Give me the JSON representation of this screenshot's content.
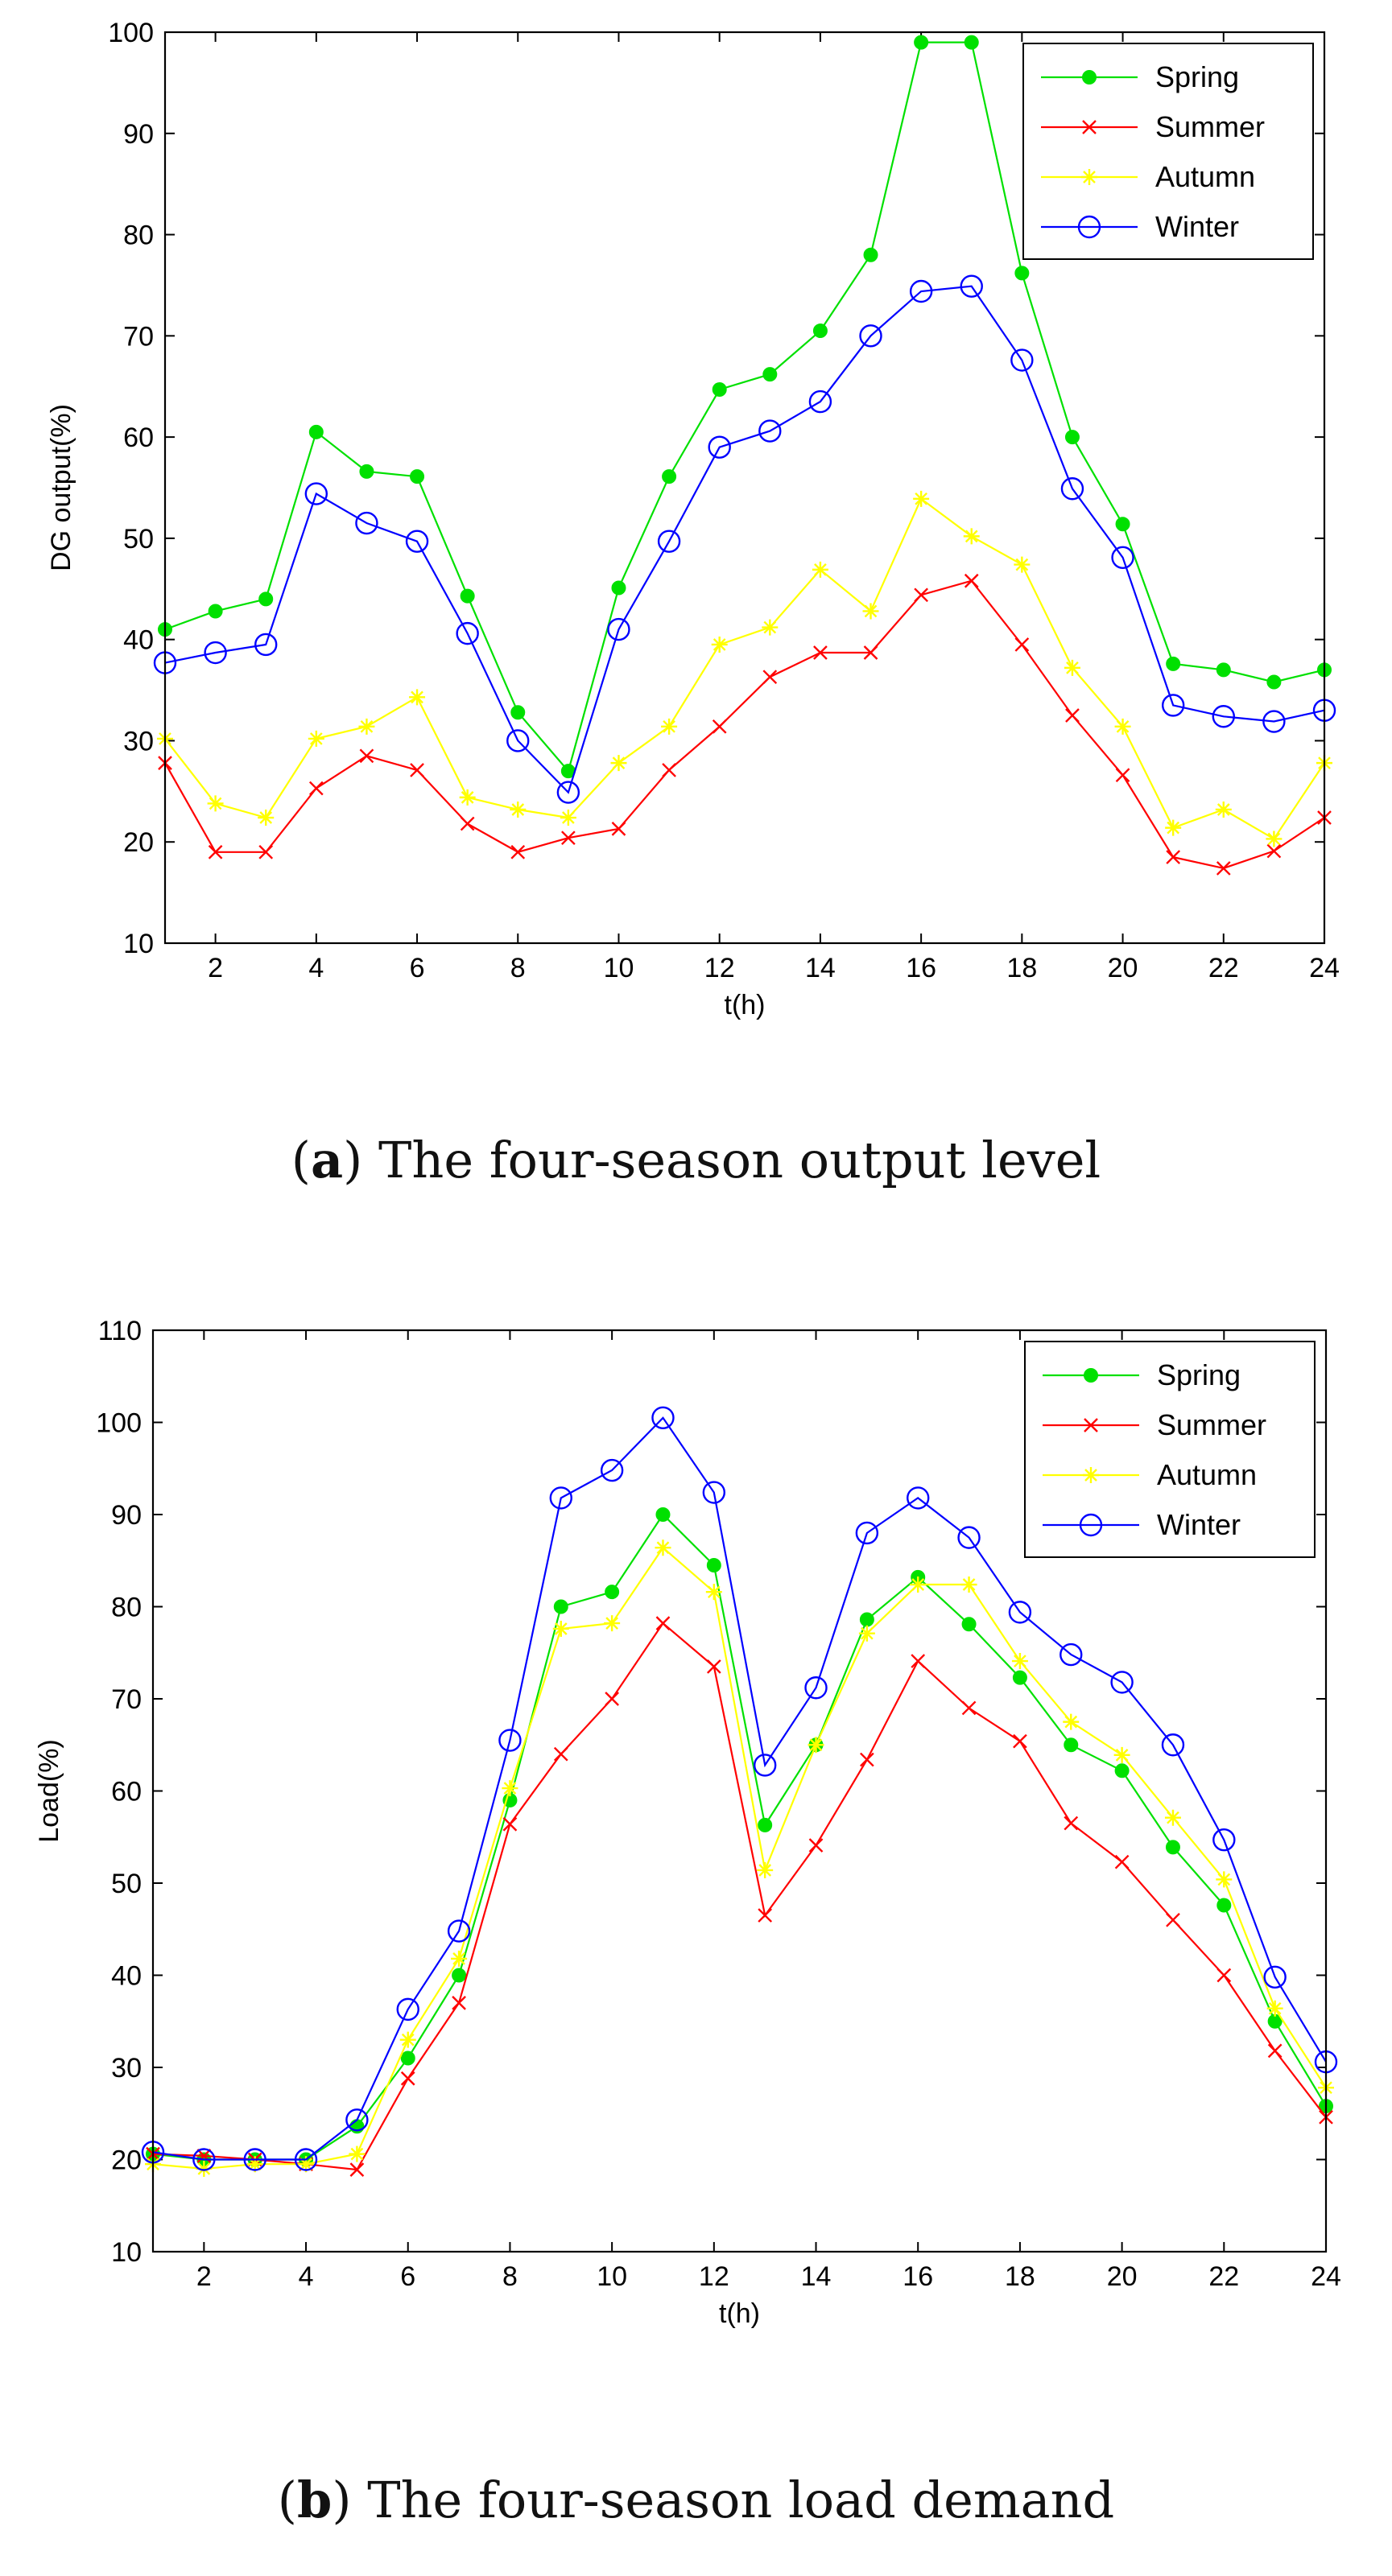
{
  "chart_data": [
    {
      "type": "line",
      "title": "",
      "xlabel": "t(h)",
      "ylabel": "DG output(%)",
      "xlim": [
        1,
        24
      ],
      "ylim": [
        10,
        100
      ],
      "xticks": [
        2,
        4,
        6,
        8,
        10,
        12,
        14,
        16,
        18,
        20,
        22,
        24
      ],
      "yticks": [
        10,
        20,
        30,
        40,
        50,
        60,
        70,
        80,
        90,
        100
      ],
      "legend_position": "top-right",
      "x": [
        1,
        2,
        3,
        4,
        5,
        6,
        7,
        8,
        9,
        10,
        11,
        12,
        13,
        14,
        15,
        16,
        17,
        18,
        19,
        20,
        21,
        22,
        23,
        24
      ],
      "series": [
        {
          "name": "Spring",
          "color": "#00e000",
          "marker": "dot",
          "values": [
            41,
            42.8,
            44,
            60.5,
            56.6,
            56.1,
            44.3,
            32.8,
            27,
            45.1,
            56.1,
            64.7,
            66.2,
            70.5,
            78,
            99,
            99,
            76.2,
            60,
            51.4,
            37.6,
            37,
            35.8,
            37
          ]
        },
        {
          "name": "Summer",
          "color": "#ff0000",
          "marker": "x",
          "values": [
            27.8,
            19,
            19,
            25.3,
            28.5,
            27.1,
            21.8,
            19,
            20.4,
            21.3,
            27.1,
            31.4,
            36.3,
            38.7,
            38.7,
            44.4,
            45.8,
            39.5,
            32.5,
            26.6,
            18.5,
            17.4,
            19.1,
            22.4
          ]
        },
        {
          "name": "Autumn",
          "color": "#ffff00",
          "marker": "star",
          "values": [
            30.2,
            23.8,
            22.4,
            30.2,
            31.4,
            34.3,
            24.4,
            23.2,
            22.4,
            27.8,
            31.4,
            39.5,
            41.2,
            46.9,
            42.8,
            53.9,
            50.2,
            47.4,
            37.2,
            31.4,
            21.4,
            23.2,
            20.3,
            27.8
          ]
        },
        {
          "name": "Winter",
          "color": "#0000ff",
          "marker": "circle",
          "values": [
            37.7,
            38.7,
            39.5,
            54.4,
            51.5,
            49.7,
            40.6,
            30,
            24.9,
            41,
            49.7,
            59,
            60.6,
            63.5,
            70,
            74.4,
            74.9,
            67.6,
            54.9,
            48.1,
            33.5,
            32.4,
            31.9,
            33
          ]
        }
      ]
    },
    {
      "type": "line",
      "title": "",
      "xlabel": "t(h)",
      "ylabel": "Load(%)",
      "xlim": [
        1,
        24
      ],
      "ylim": [
        10,
        110
      ],
      "xticks": [
        2,
        4,
        6,
        8,
        10,
        12,
        14,
        16,
        18,
        20,
        22,
        24
      ],
      "yticks": [
        10,
        20,
        30,
        40,
        50,
        60,
        70,
        80,
        90,
        100,
        110
      ],
      "legend_position": "top-right",
      "x": [
        1,
        2,
        3,
        4,
        5,
        6,
        7,
        8,
        9,
        10,
        11,
        12,
        13,
        14,
        15,
        16,
        17,
        18,
        19,
        20,
        21,
        22,
        23,
        24
      ],
      "series": [
        {
          "name": "Spring",
          "color": "#00e000",
          "marker": "dot",
          "values": [
            20.6,
            20,
            20,
            20,
            23.6,
            31,
            40,
            59,
            80,
            81.6,
            90,
            84.5,
            56.3,
            65,
            78.6,
            83.2,
            78.1,
            72.3,
            65,
            62.2,
            53.9,
            47.6,
            35,
            25.8
          ]
        },
        {
          "name": "Summer",
          "color": "#ff0000",
          "marker": "x",
          "values": [
            20.6,
            20.4,
            20,
            19.5,
            18.9,
            28.8,
            37,
            56.4,
            64,
            70,
            78.2,
            73.5,
            46.5,
            54.1,
            63.4,
            74.1,
            69,
            65.4,
            56.5,
            52.3,
            46,
            40,
            31.8,
            24.6
          ]
        },
        {
          "name": "Autumn",
          "color": "#ffff00",
          "marker": "star",
          "values": [
            19.5,
            19,
            19.5,
            19.5,
            20.6,
            33,
            41.8,
            60.3,
            77.6,
            78.2,
            86.4,
            81.6,
            51.4,
            65,
            77.1,
            82.4,
            82.4,
            74.1,
            67.5,
            63.9,
            57.1,
            50.4,
            36.4,
            27.8
          ]
        },
        {
          "name": "Winter",
          "color": "#0000ff",
          "marker": "circle",
          "values": [
            20.8,
            20,
            20,
            20,
            24.3,
            36.3,
            44.8,
            65.5,
            91.8,
            94.8,
            100.5,
            92.4,
            62.8,
            71.2,
            88,
            91.8,
            87.5,
            79.4,
            74.8,
            71.8,
            65,
            54.7,
            39.8,
            30.6
          ]
        }
      ]
    }
  ],
  "captions": {
    "a": {
      "letter": "a",
      "text": " The four-season output level"
    },
    "b": {
      "letter": "b",
      "text": " The four-season load demand"
    }
  }
}
